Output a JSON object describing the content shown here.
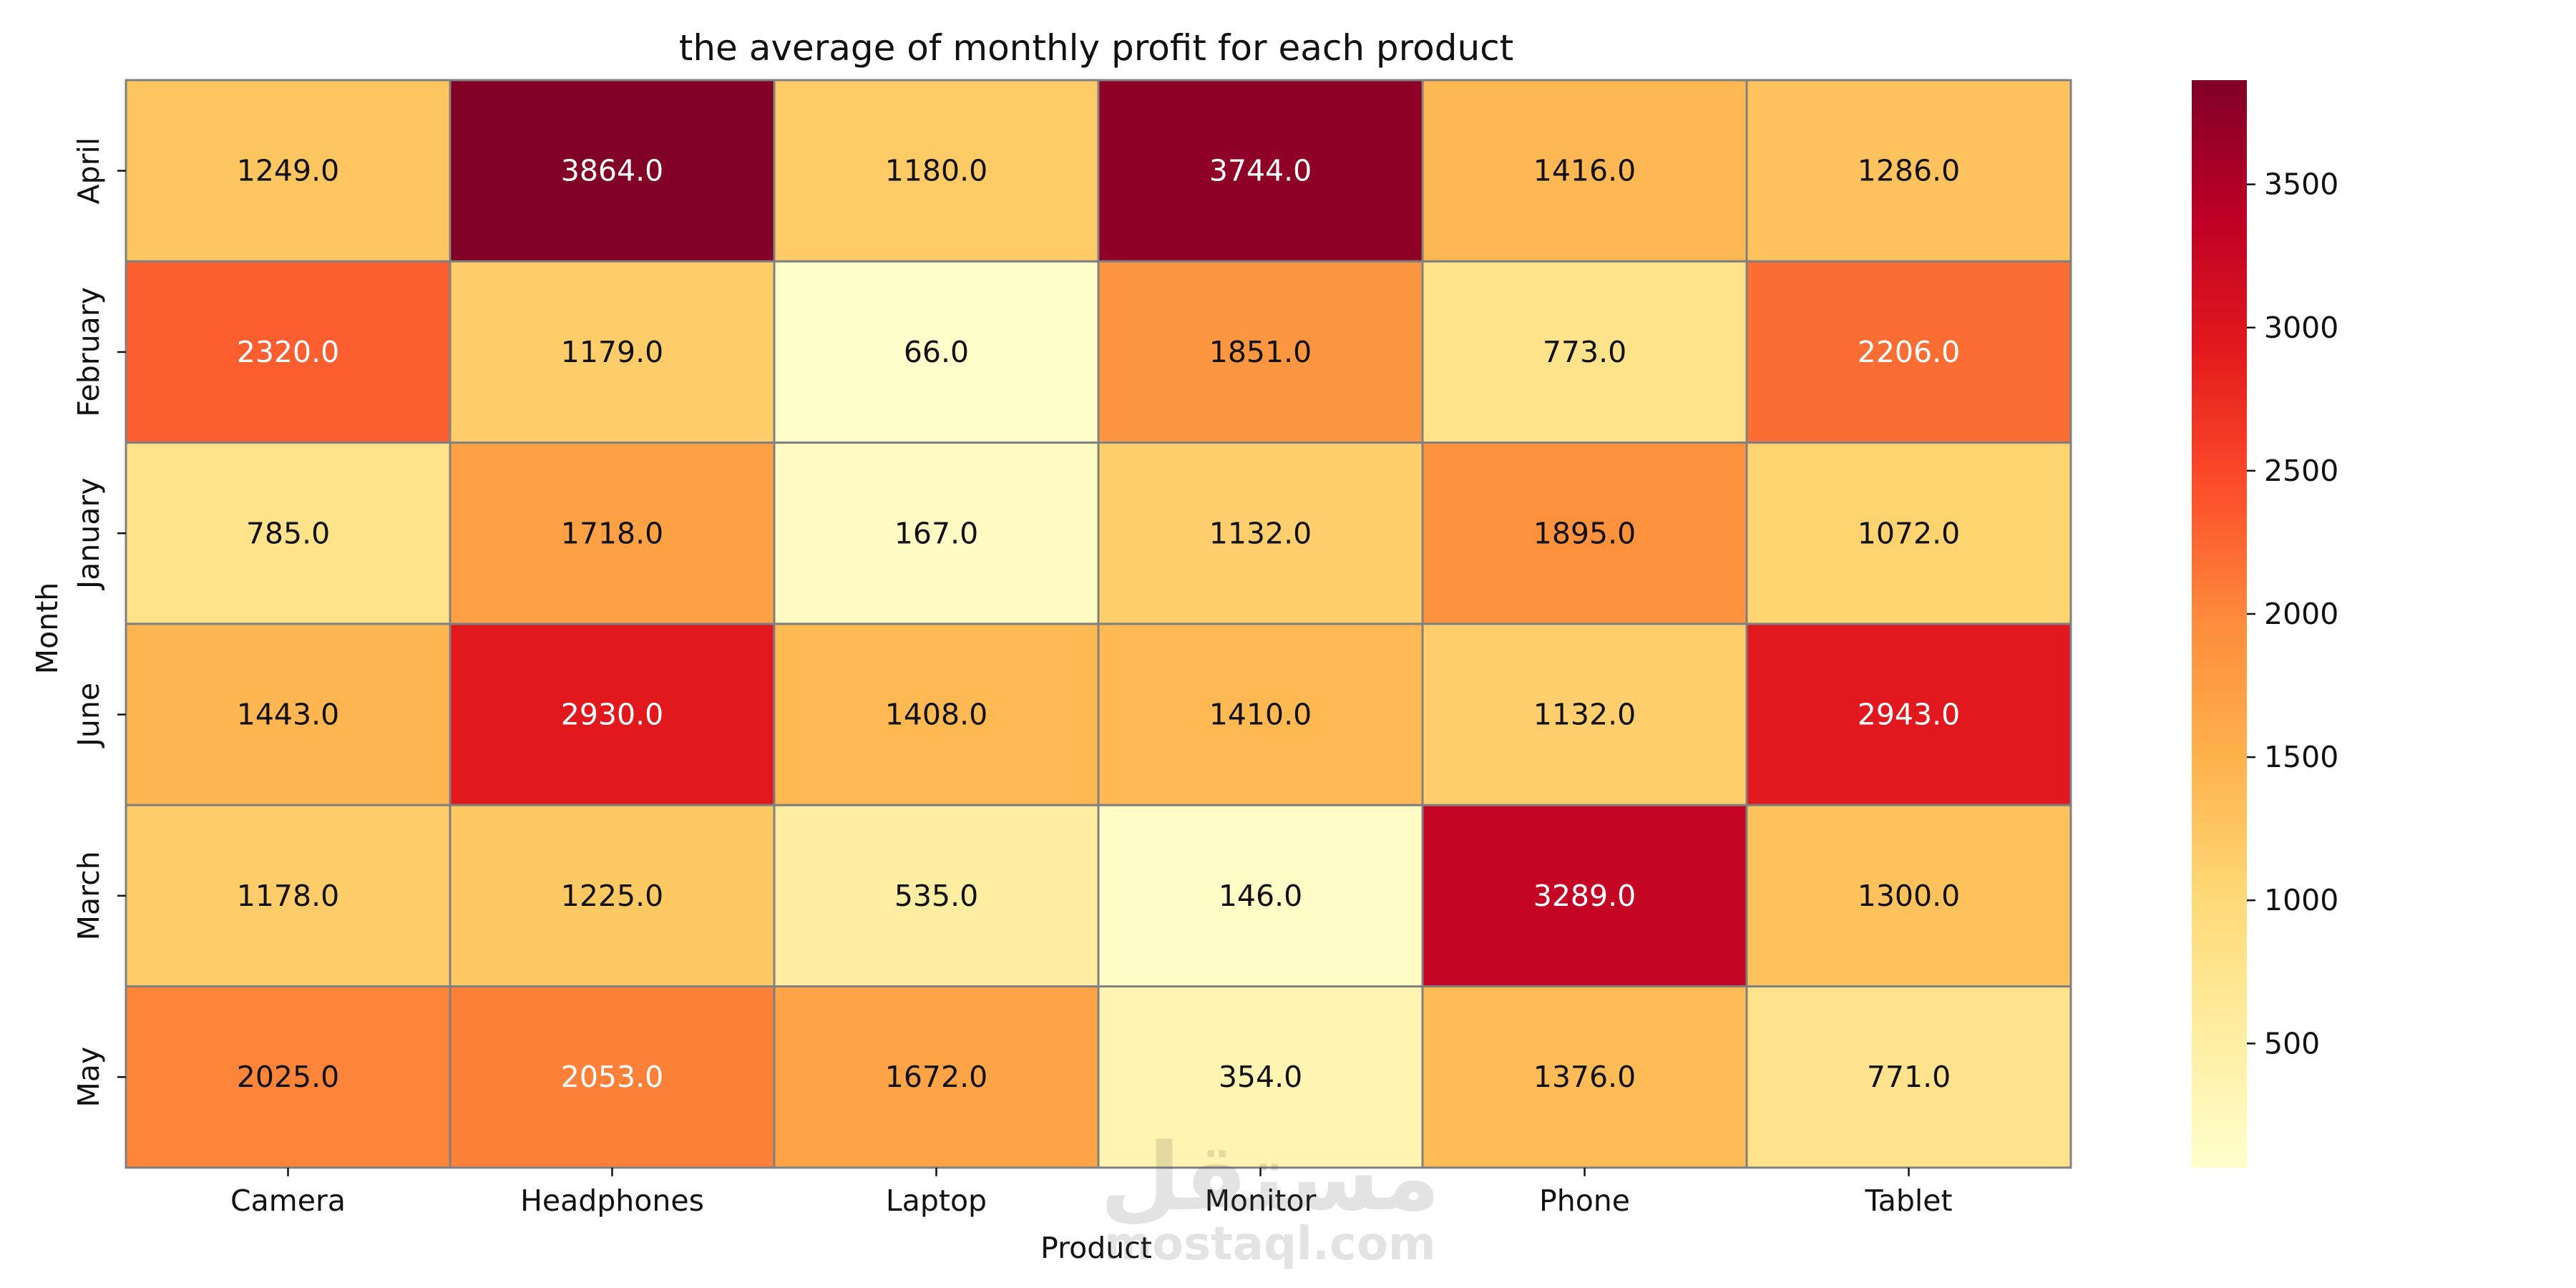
{
  "chart_data": {
    "type": "heatmap",
    "title": "the average of monthly profit for each product",
    "xlabel": "Product",
    "ylabel": "Month",
    "x_categories": [
      "Camera",
      "Headphones",
      "Laptop",
      "Monitor",
      "Phone",
      "Tablet"
    ],
    "y_categories": [
      "April",
      "February",
      "January",
      "June",
      "March",
      "May"
    ],
    "values": [
      [
        1249.0,
        3864.0,
        1180.0,
        3744.0,
        1416.0,
        1286.0
      ],
      [
        2320.0,
        1179.0,
        66.0,
        1851.0,
        773.0,
        2206.0
      ],
      [
        785.0,
        1718.0,
        167.0,
        1132.0,
        1895.0,
        1072.0
      ],
      [
        1443.0,
        2930.0,
        1408.0,
        1410.0,
        1132.0,
        2943.0
      ],
      [
        1178.0,
        1225.0,
        535.0,
        146.0,
        3289.0,
        1300.0
      ],
      [
        2025.0,
        2053.0,
        1672.0,
        354.0,
        1376.0,
        771.0
      ]
    ],
    "value_format": "0.0",
    "colormap": "YlOrRd",
    "color_range": [
      66.0,
      3864.0
    ],
    "colorbar_ticks": [
      500,
      1000,
      1500,
      2000,
      2500,
      3000,
      3500
    ],
    "cell_border_color": "#808080",
    "watermark": {
      "arabic": "مستقل",
      "latin": "mostaql.com"
    }
  }
}
